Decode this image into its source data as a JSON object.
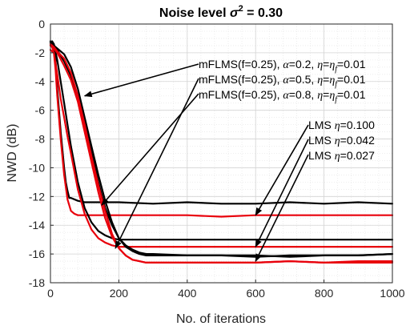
{
  "chart_data": {
    "type": "line",
    "title_prefix": "Noise level ",
    "title_symbol": "σ",
    "title_exponent": "2",
    "title_suffix": " = 0.30",
    "xlabel": "No. of iterations",
    "ylabel": "NWD (dB)",
    "xlim": [
      0,
      1000
    ],
    "ylim": [
      -18,
      0
    ],
    "xticks": [
      0,
      200,
      400,
      600,
      800,
      1000
    ],
    "yticks": [
      0,
      -2,
      -4,
      -6,
      -8,
      -10,
      -12,
      -14,
      -16,
      -18
    ],
    "grid": true,
    "minor_grid": true,
    "series_colors": {
      "black": "#000000",
      "red": "#e8000b"
    },
    "series": [
      {
        "color": "black",
        "x": [
          0,
          5,
          10,
          15,
          20,
          30,
          40,
          45,
          50,
          55,
          60,
          80,
          100,
          150,
          200,
          300,
          400,
          500,
          600,
          700,
          800,
          900,
          1000
        ],
        "y": [
          -1.3,
          -1.2,
          -1.4,
          -2.5,
          -4.5,
          -7.5,
          -10.0,
          -11.0,
          -11.6,
          -12.1,
          -12.1,
          -12.3,
          -12.4,
          -12.4,
          -12.4,
          -12.5,
          -12.4,
          -12.5,
          -12.5,
          -12.4,
          -12.5,
          -12.4,
          -12.5
        ]
      },
      {
        "color": "red",
        "x": [
          0,
          5,
          10,
          15,
          20,
          30,
          40,
          50,
          60,
          70,
          80,
          100,
          150,
          200,
          300,
          400,
          500,
          600,
          700,
          800,
          900,
          1000
        ],
        "y": [
          -1.5,
          -1.6,
          -2.0,
          -3.2,
          -5.0,
          -8.0,
          -10.5,
          -12.2,
          -13.0,
          -13.2,
          -13.3,
          -13.3,
          -13.3,
          -13.3,
          -13.3,
          -13.3,
          -13.4,
          -13.3,
          -13.3,
          -13.3,
          -13.3,
          -13.3
        ]
      },
      {
        "color": "black",
        "x": [
          0,
          10,
          20,
          30,
          40,
          50,
          60,
          80,
          100,
          120,
          140,
          160,
          180,
          200,
          250,
          300,
          400,
          500,
          600,
          700,
          800,
          900,
          1000
        ],
        "y": [
          -1.3,
          -1.4,
          -2.5,
          -4.0,
          -5.5,
          -7.0,
          -8.5,
          -11.0,
          -12.8,
          -13.8,
          -14.4,
          -14.7,
          -14.9,
          -15.0,
          -15.0,
          -15.0,
          -15.0,
          -15.0,
          -15.0,
          -15.0,
          -15.0,
          -15.0,
          -15.0
        ]
      },
      {
        "color": "red",
        "x": [
          0,
          10,
          20,
          30,
          40,
          50,
          60,
          80,
          100,
          120,
          140,
          160,
          180,
          200,
          250,
          300,
          400,
          500,
          600,
          700,
          800,
          900,
          1000
        ],
        "y": [
          -1.8,
          -2.0,
          -3.5,
          -5.2,
          -6.5,
          -7.8,
          -9.0,
          -11.5,
          -13.2,
          -14.3,
          -14.9,
          -15.2,
          -15.4,
          -15.5,
          -15.5,
          -15.5,
          -15.5,
          -15.5,
          -15.5,
          -15.5,
          -15.5,
          -15.5,
          -15.5
        ]
      },
      {
        "color": "black",
        "x": [
          0,
          10,
          20,
          40,
          60,
          80,
          100,
          120,
          140,
          160,
          180,
          200,
          220,
          240,
          260,
          280,
          300,
          400,
          500,
          600,
          700,
          800,
          900,
          1000
        ],
        "y": [
          -1.2,
          -1.5,
          -1.8,
          -2.6,
          -3.6,
          -5.0,
          -7.0,
          -9.0,
          -11.0,
          -12.8,
          -14.0,
          -14.9,
          -15.4,
          -15.7,
          -15.9,
          -16.0,
          -16.0,
          -16.1,
          -16.1,
          -16.2,
          -16.1,
          -16.1,
          -16.1,
          -16.0
        ]
      },
      {
        "color": "red",
        "x": [
          0,
          10,
          20,
          40,
          60,
          80,
          100,
          120,
          140,
          160,
          180,
          200,
          220,
          240,
          260,
          280,
          300,
          400,
          500,
          600,
          700,
          800,
          900,
          1000
        ],
        "y": [
          -1.5,
          -1.7,
          -2.0,
          -2.9,
          -3.9,
          -5.4,
          -7.5,
          -9.6,
          -11.7,
          -13.5,
          -14.8,
          -15.6,
          -16.1,
          -16.4,
          -16.5,
          -16.6,
          -16.6,
          -16.6,
          -16.6,
          -16.6,
          -16.5,
          -16.6,
          -16.5,
          -16.5
        ]
      },
      {
        "color": "black",
        "x": [
          0,
          10,
          20,
          40,
          60,
          80,
          100,
          120,
          140,
          160,
          180,
          200,
          220,
          240,
          260,
          280,
          300,
          400,
          500,
          600,
          700,
          800,
          900,
          1000
        ],
        "y": [
          -1.2,
          -1.5,
          -1.7,
          -2.1,
          -3.0,
          -4.5,
          -6.5,
          -8.5,
          -10.5,
          -12.3,
          -13.8,
          -14.9,
          -15.5,
          -15.8,
          -16.0,
          -16.1,
          -16.1,
          -16.1,
          -16.1,
          -16.1,
          -16.2,
          -16.1,
          -16.1,
          -16.0
        ]
      },
      {
        "color": "red",
        "x": [
          0,
          10,
          20,
          40,
          60,
          80,
          100,
          120,
          140,
          160,
          180,
          200,
          220,
          240,
          260,
          280,
          300,
          400,
          500,
          600,
          700,
          800,
          900,
          1000
        ],
        "y": [
          -1.4,
          -1.6,
          -1.9,
          -2.4,
          -3.4,
          -5.0,
          -7.0,
          -9.2,
          -11.2,
          -13.0,
          -14.6,
          -15.6,
          -16.1,
          -16.4,
          -16.5,
          -16.6,
          -16.6,
          -16.6,
          -16.6,
          -16.6,
          -16.5,
          -16.6,
          -16.6,
          -16.6
        ]
      }
    ],
    "annotations": [
      {
        "prefix": "mFLMS(f=0.25), ",
        "alpha": "0.2",
        "eta": "0.01",
        "arrow_to": [
          100,
          -5.0
        ]
      },
      {
        "prefix": "mFLMS(f=0.25), ",
        "alpha": "0.5",
        "eta": "0.01",
        "arrow_to": [
          190,
          -15.6
        ]
      },
      {
        "prefix": "mFLMS(f=0.25), ",
        "alpha": "0.8",
        "eta": "0.01",
        "arrow_to": [
          150,
          -12.6
        ]
      },
      {
        "prefix": "LMS ",
        "eta": "0.100",
        "arrow_to": [
          600,
          -13.3
        ]
      },
      {
        "prefix": "LMS ",
        "eta": "0.042",
        "arrow_to": [
          600,
          -15.5
        ]
      },
      {
        "prefix": "LMS ",
        "eta": "0.027",
        "arrow_to": [
          600,
          -16.5
        ]
      }
    ],
    "symbols": {
      "alpha": "α",
      "eta": "η",
      "eta_f_sub": "f"
    }
  }
}
